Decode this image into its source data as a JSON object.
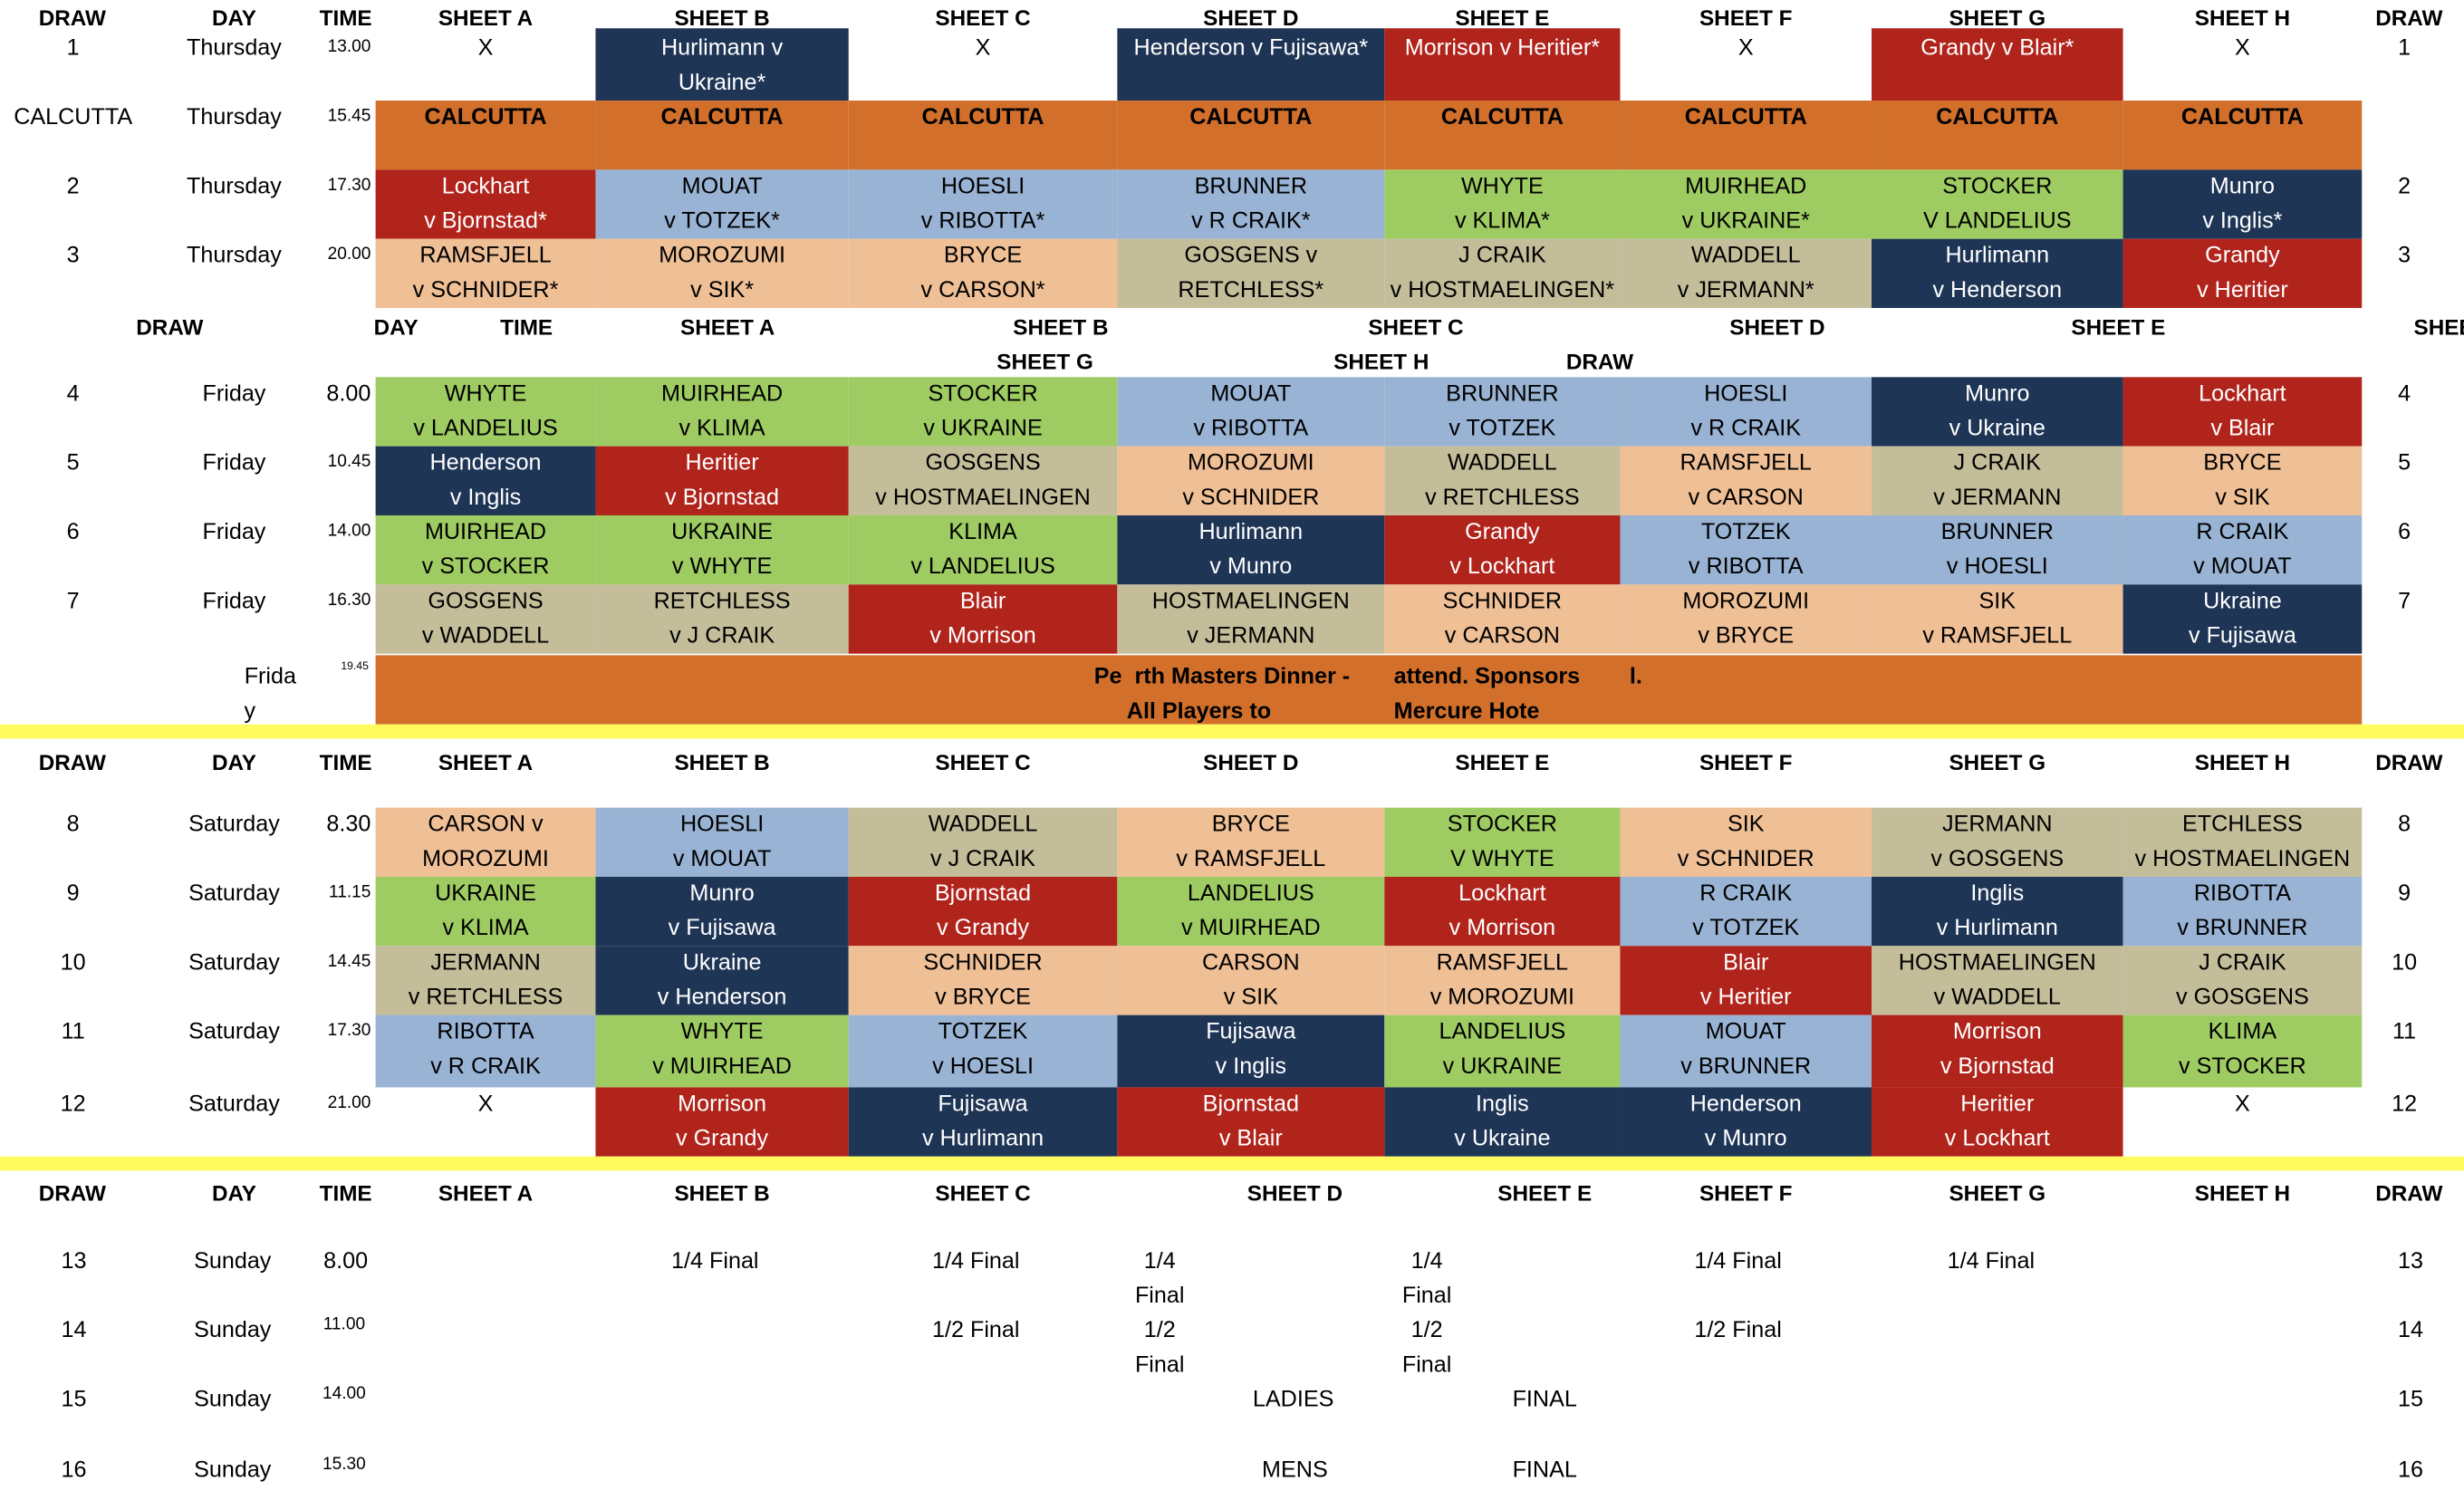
{
  "colors": {
    "navy": "#1f3556",
    "red": "#b0241c",
    "orange": "#d2702b",
    "blue": "#99b3d4",
    "green": "#9fcc62",
    "peach": "#efbf96",
    "tan": "#c4bd9a",
    "band": "#fffb5c"
  },
  "header": {
    "draw": "DRAW",
    "day": "DAY",
    "time": "TIME",
    "sheets": [
      "SHEET A",
      "SHEET B",
      "SHEET C",
      "SHEET D",
      "SHEET E",
      "SHEET F",
      "SHEET G",
      "SHEET H"
    ],
    "draw_right": "DRAW"
  },
  "friday_header": {
    "draw": "DRAW",
    "day": "DAY",
    "time": "TIME",
    "sheet_a": "SHEET A",
    "sheet_b": "SHEET B",
    "sheet_c": "SHEET C",
    "sheet_d": "SHEET D",
    "sheet_e": "SHEET E",
    "sheet_cut": "SHEE",
    "sheet_g": "SHEET G",
    "sheet_h": "SHEET H",
    "draw_right": "DRAW"
  },
  "rows": [
    {
      "draw": "1",
      "day": "Thursday",
      "time": "13.00",
      "draw_right": "1",
      "cells": [
        {
          "l1": "X"
        },
        {
          "l1": "Hurlimann v",
          "l2": "Ukraine*",
          "c": "navy"
        },
        {
          "l1": "X"
        },
        {
          "l1": "Henderson v Fujisawa*",
          "c": "navy"
        },
        {
          "l1": "Morrison v Heritier*",
          "c": "red"
        },
        {
          "l1": "X"
        },
        {
          "l1": "Grandy v Blair*",
          "c": "red"
        },
        {
          "l1": "X"
        }
      ]
    },
    {
      "draw": "CALCUTTA",
      "day": "Thursday",
      "time": "15.45",
      "draw_right": "",
      "bold": true,
      "cells": [
        {
          "l1": "CALCUTTA",
          "c": "orange"
        },
        {
          "l1": "CALCUTTA",
          "c": "orange"
        },
        {
          "l1": "CALCUTTA",
          "c": "orange"
        },
        {
          "l1": "CALCUTTA",
          "c": "orange"
        },
        {
          "l1": "CALCUTTA",
          "c": "orange"
        },
        {
          "l1": "CALCUTTA",
          "c": "orange"
        },
        {
          "l1": "CALCUTTA",
          "c": "orange"
        },
        {
          "l1": "CALCUTTA",
          "c": "orange"
        }
      ]
    },
    {
      "draw": "2",
      "day": "Thursday",
      "time": "17.30",
      "draw_right": "2",
      "cells": [
        {
          "l1": "Lockhart",
          "l2": "v Bjornstad*",
          "c": "red"
        },
        {
          "l1": "MOUAT",
          "l2": "v TOTZEK*",
          "c": "blue"
        },
        {
          "l1": "HOESLI",
          "l2": "v RIBOTTA*",
          "c": "blue"
        },
        {
          "l1": "BRUNNER",
          "l2": "v R CRAIK*",
          "c": "blue"
        },
        {
          "l1": "WHYTE",
          "l2": "v KLIMA*",
          "c": "green"
        },
        {
          "l1": "MUIRHEAD",
          "l2": "v UKRAINE*",
          "c": "green"
        },
        {
          "l1": "STOCKER",
          "l2": "V LANDELIUS",
          "c": "green"
        },
        {
          "l1": "Munro",
          "l2": "v Inglis*",
          "c": "navy"
        }
      ]
    },
    {
      "draw": "3",
      "day": "Thursday",
      "time": "20.00",
      "draw_right": "3",
      "cells": [
        {
          "l1": "RAMSFJELL",
          "l2": "v SCHNIDER*",
          "c": "peach"
        },
        {
          "l1": "MOROZUMI",
          "l2": "v SIK*",
          "c": "peach"
        },
        {
          "l1": "BRYCE",
          "l2": "v CARSON*",
          "c": "peach"
        },
        {
          "l1": "GOSGENS v",
          "l2": "RETCHLESS*",
          "c": "tan"
        },
        {
          "l1": "J CRAIK",
          "l2": "v HOSTMAELINGEN*",
          "c": "tan"
        },
        {
          "l1": "WADDELL",
          "l2": "v JERMANN*",
          "c": "tan"
        },
        {
          "l1": "Hurlimann",
          "l2": "v Henderson",
          "c": "navy"
        },
        {
          "l1": "Grandy",
          "l2": "v Heritier",
          "c": "red"
        }
      ]
    },
    {
      "draw": "4",
      "day": "Friday",
      "time": "8.00",
      "time_normal": true,
      "draw_right": "4",
      "cells": [
        {
          "l1": "WHYTE",
          "l2": "v LANDELIUS",
          "c": "green"
        },
        {
          "l1": "MUIRHEAD",
          "l2": "v KLIMA",
          "c": "green"
        },
        {
          "l1": "STOCKER",
          "l2": "v UKRAINE",
          "c": "green"
        },
        {
          "l1": "MOUAT",
          "l2": "v RIBOTTA",
          "c": "blue"
        },
        {
          "l1": "BRUNNER",
          "l2": "v TOTZEK",
          "c": "blue"
        },
        {
          "l1": "HOESLI",
          "l2": "v R CRAIK",
          "c": "blue"
        },
        {
          "l1": "Munro",
          "l2": "v Ukraine",
          "c": "navy"
        },
        {
          "l1": "Lockhart",
          "l2": "v Blair",
          "c": "red"
        }
      ]
    },
    {
      "draw": "5",
      "day": "Friday",
      "time": "10.45",
      "draw_right": "5",
      "cells": [
        {
          "l1": "Henderson",
          "l2": "v Inglis",
          "c": "navy"
        },
        {
          "l1": "Heritier",
          "l2": "v Bjornstad",
          "c": "red"
        },
        {
          "l1": "GOSGENS",
          "l2": "v HOSTMAELINGEN",
          "c": "tan"
        },
        {
          "l1": "MOROZUMI",
          "l2": "v SCHNIDER",
          "c": "peach"
        },
        {
          "l1": "WADDELL",
          "l2": "v RETCHLESS",
          "c": "tan"
        },
        {
          "l1": "RAMSFJELL",
          "l2": "v CARSON",
          "c": "peach"
        },
        {
          "l1": "J CRAIK",
          "l2": "v JERMANN",
          "c": "tan"
        },
        {
          "l1": "BRYCE",
          "l2": "v SIK",
          "c": "peach"
        }
      ]
    },
    {
      "draw": "6",
      "day": "Friday",
      "time": "14.00",
      "draw_right": "6",
      "cells": [
        {
          "l1": "MUIRHEAD",
          "l2": "v STOCKER",
          "c": "green"
        },
        {
          "l1": "UKRAINE",
          "l2": "v WHYTE",
          "c": "green"
        },
        {
          "l1": "KLIMA",
          "l2": "v LANDELIUS",
          "c": "green"
        },
        {
          "l1": "Hurlimann",
          "l2": "v Munro",
          "c": "navy"
        },
        {
          "l1": "Grandy",
          "l2": "v Lockhart",
          "c": "red"
        },
        {
          "l1": "TOTZEK",
          "l2": "v RIBOTTA",
          "c": "blue"
        },
        {
          "l1": "BRUNNER",
          "l2": "v HOESLI",
          "c": "blue"
        },
        {
          "l1": "R CRAIK",
          "l2": "v MOUAT",
          "c": "blue"
        }
      ]
    },
    {
      "draw": "7",
      "day": "Friday",
      "time": "16.30",
      "draw_right": "7",
      "cells": [
        {
          "l1": "GOSGENS",
          "l2": "v WADDELL",
          "c": "tan"
        },
        {
          "l1": "RETCHLESS",
          "l2": "v J CRAIK",
          "c": "tan"
        },
        {
          "l1": "Blair",
          "l2": "v Morrison",
          "c": "red"
        },
        {
          "l1": "HOSTMAELINGEN",
          "l2": "v JERMANN",
          "c": "tan"
        },
        {
          "l1": "SCHNIDER",
          "l2": "v CARSON",
          "c": "peach"
        },
        {
          "l1": "MOROZUMI",
          "l2": "v BRYCE",
          "c": "peach"
        },
        {
          "l1": "SIK",
          "l2": "v RAMSFJELL",
          "c": "peach"
        },
        {
          "l1": "Ukraine",
          "l2": "v Fujisawa",
          "c": "navy"
        }
      ]
    },
    {
      "draw": "8",
      "day": "Saturday",
      "time": "8.30",
      "time_normal": true,
      "draw_right": "8",
      "cells": [
        {
          "l1": "CARSON v",
          "l2": "MOROZUMI",
          "c": "peach"
        },
        {
          "l1": "HOESLI",
          "l2": "v MOUAT",
          "c": "blue"
        },
        {
          "l1": "WADDELL",
          "l2": "v J CRAIK",
          "c": "tan"
        },
        {
          "l1": "BRYCE",
          "l2": "v RAMSFJELL",
          "c": "peach"
        },
        {
          "l1": "STOCKER",
          "l2": "V WHYTE",
          "c": "green"
        },
        {
          "l1": "SIK",
          "l2": "v SCHNIDER",
          "c": "peach"
        },
        {
          "l1": "JERMANN",
          "l2": "v GOSGENS",
          "c": "tan"
        },
        {
          "l1": "ETCHLESS",
          "l2": "v HOSTMAELINGEN",
          "c": "tan"
        }
      ]
    },
    {
      "draw": "9",
      "day": "Saturday",
      "time": "11.15",
      "draw_right": "9",
      "cells": [
        {
          "l1": "UKRAINE",
          "l2": "v KLIMA",
          "c": "green"
        },
        {
          "l1": "Munro",
          "l2": "v Fujisawa",
          "c": "navy"
        },
        {
          "l1": "Bjornstad",
          "l2": "v Grandy",
          "c": "red"
        },
        {
          "l1": "LANDELIUS",
          "l2": "v MUIRHEAD",
          "c": "green"
        },
        {
          "l1": "Lockhart",
          "l2": "v Morrison",
          "c": "red"
        },
        {
          "l1": "R CRAIK",
          "l2": "v TOTZEK",
          "c": "blue"
        },
        {
          "l1": "Inglis",
          "l2": "v Hurlimann",
          "c": "navy"
        },
        {
          "l1": "RIBOTTA",
          "l2": "v BRUNNER",
          "c": "blue"
        }
      ]
    },
    {
      "draw": "10",
      "day": "Saturday",
      "time": "14.45",
      "draw_right": "10",
      "cells": [
        {
          "l1": "JERMANN",
          "l2": "v RETCHLESS",
          "c": "tan"
        },
        {
          "l1": "Ukraine",
          "l2": "v Henderson",
          "c": "navy"
        },
        {
          "l1": "SCHNIDER",
          "l2": "v BRYCE",
          "c": "peach"
        },
        {
          "l1": "CARSON",
          "l2": "v SIK",
          "c": "peach"
        },
        {
          "l1": "RAMSFJELL",
          "l2": "v MOROZUMI",
          "c": "peach"
        },
        {
          "l1": "Blair",
          "l2": "v Heritier",
          "c": "red"
        },
        {
          "l1": "HOSTMAELINGEN",
          "l2": "v WADDELL",
          "c": "tan"
        },
        {
          "l1": "J CRAIK",
          "l2": "v GOSGENS",
          "c": "tan"
        }
      ]
    },
    {
      "draw": "11",
      "day": "Saturday",
      "time": "17.30",
      "draw_right": "11",
      "cells": [
        {
          "l1": "RIBOTTA",
          "l2": "v R CRAIK",
          "c": "blue"
        },
        {
          "l1": "WHYTE",
          "l2": "v MUIRHEAD",
          "c": "green"
        },
        {
          "l1": "TOTZEK",
          "l2": "v HOESLI",
          "c": "blue"
        },
        {
          "l1": "Fujisawa",
          "l2": "v Inglis",
          "c": "navy"
        },
        {
          "l1": "LANDELIUS",
          "l2": "v UKRAINE",
          "c": "green"
        },
        {
          "l1": "MOUAT",
          "l2": "v BRUNNER",
          "c": "blue"
        },
        {
          "l1": "Morrison",
          "l2": "v Bjornstad",
          "c": "red"
        },
        {
          "l1": "KLIMA",
          "l2": "v STOCKER",
          "c": "green"
        }
      ]
    },
    {
      "draw": "12",
      "day": "Saturday",
      "time": "21.00",
      "draw_right": "12",
      "cells": [
        {
          "l1": "X"
        },
        {
          "l1": "Morrison",
          "l2": "v Grandy",
          "c": "red"
        },
        {
          "l1": "Fujisawa",
          "l2": "v Hurlimann",
          "c": "navy"
        },
        {
          "l1": "Bjornstad",
          "l2": "v Blair",
          "c": "red"
        },
        {
          "l1": "Inglis",
          "l2": "v Ukraine",
          "c": "navy"
        },
        {
          "l1": "Henderson",
          "l2": "v Munro",
          "c": "navy"
        },
        {
          "l1": "Heritier",
          "l2": "v Lockhart",
          "c": "red"
        },
        {
          "l1": "X"
        }
      ]
    }
  ],
  "dinner": {
    "day_1": "Frida",
    "day_2": "y",
    "time": "19.45",
    "text_1": "Pe  rth Masters Dinner -",
    "text_2": "attend. Sponsors",
    "text_3": "l.",
    "text_4": "All Players to",
    "text_5": "Mercure Hote"
  },
  "sunday": [
    {
      "draw": "13",
      "day": "Sunday",
      "time": "8.00",
      "draw_right": "13",
      "b": "1/4 Final",
      "c": "1/4 Final",
      "d1": "1/4",
      "d2": "Final",
      "e1": "1/4",
      "e2": "Final",
      "f": "1/4 Final",
      "g": "1/4 Final"
    },
    {
      "draw": "14",
      "day": "Sunday",
      "time": "11.00",
      "draw_right": "14",
      "c": "1/2 Final",
      "d1": "1/2",
      "d2": "Final",
      "e1": "1/2",
      "e2": "Final",
      "f": "1/2 Final"
    },
    {
      "draw": "15",
      "day": "Sunday",
      "time": "14.00",
      "draw_right": "15",
      "d": "LADIES",
      "e": "FINAL"
    },
    {
      "draw": "16",
      "day": "Sunday",
      "time": "15.30",
      "draw_right": "16",
      "d": "MENS",
      "e": "FINAL"
    }
  ]
}
